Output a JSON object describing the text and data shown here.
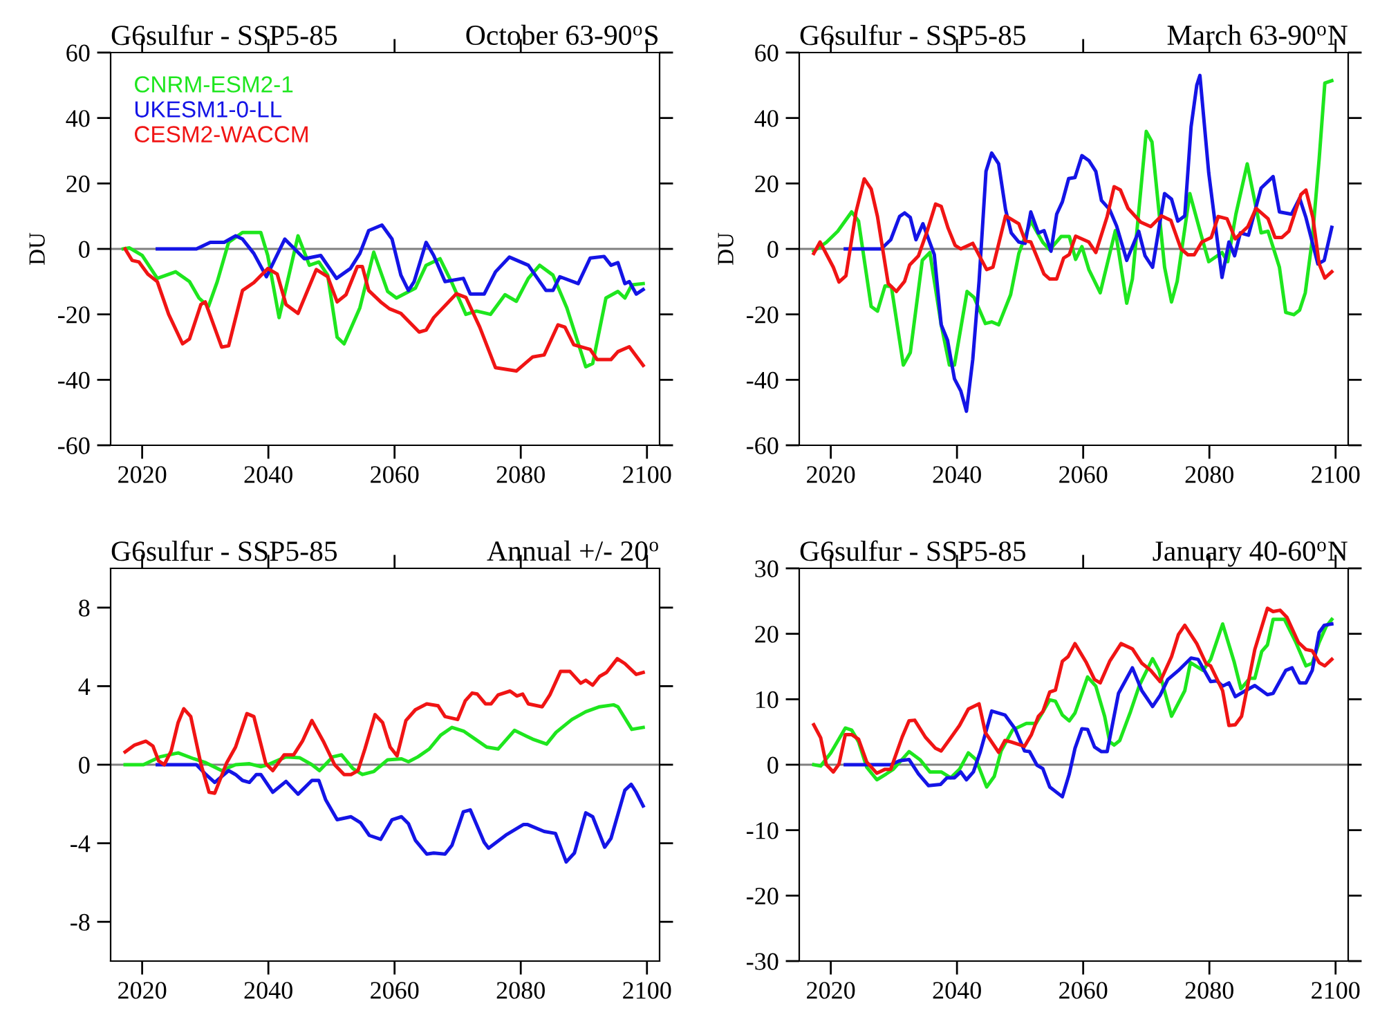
{
  "chart_data": [
    {
      "type": "line",
      "title": "G6sulfur - SSP5-85",
      "subtitle": "October 63-90$^{o}$S",
      "ylabel": "DU",
      "xlim": [
        2015,
        2102
      ],
      "xticks": [
        2020,
        2040,
        2060,
        2080,
        2100
      ],
      "ylim": [
        -60,
        60
      ],
      "yticks": [
        -60,
        -40,
        -20,
        0,
        20,
        40,
        60
      ],
      "legend": "top left",
      "ref_lines": [
        {
          "axis": "y",
          "value": 0,
          "color": "#808080"
        }
      ],
      "series": [
        {
          "name": "CNRM-ESM2-1",
          "color": "#1ee61e",
          "x": [
            2017,
            2018,
            2020,
            2022.4,
            2025.3,
            2027.5,
            2029,
            2030.5,
            2031.9,
            2033.7,
            2035.9,
            2038.8,
            2039.9,
            2041.7,
            2044.7,
            2046.5,
            2048,
            2049.4,
            2050.9,
            2052,
            2054.5,
            2056.7,
            2058.9,
            2060.3,
            2063.3,
            2065,
            2067.2,
            2069,
            2071.3,
            2073,
            2075.2,
            2077.5,
            2079.3,
            2081.2,
            2083,
            2085.1,
            2087.3,
            2090.3,
            2091.4,
            2093.5,
            2095.4,
            2096.5,
            2097.6,
            2099.4
          ],
          "values": [
            0,
            0.3,
            -2,
            -9,
            -7,
            -10,
            -15,
            -17.6,
            -10,
            2,
            5,
            5,
            -2,
            -21,
            4,
            -5,
            -4,
            -8,
            -27,
            -29,
            -18,
            -1,
            -13,
            -15,
            -12,
            -5,
            -3,
            -10,
            -20,
            -19,
            -20,
            -14,
            -16,
            -9,
            -5,
            -8,
            -18,
            -36,
            -35,
            -15,
            -13,
            -15,
            -11,
            -10.6
          ]
        },
        {
          "name": "UKESM1-0-LL",
          "color": "#1414e6",
          "x": [
            2022.4,
            2028.6,
            2030.8,
            2033,
            2034.8,
            2035.9,
            2037.7,
            2039.7,
            2042.6,
            2045.7,
            2048.3,
            2050.8,
            2053,
            2054.5,
            2055.9,
            2058,
            2059.6,
            2061,
            2062.2,
            2063.1,
            2065,
            2066.2,
            2068,
            2070.9,
            2072,
            2074.2,
            2076,
            2078.2,
            2081.2,
            2084,
            2085.1,
            2086.2,
            2089.1,
            2091,
            2093.2,
            2094.3,
            2095.4,
            2096.5,
            2097.2,
            2098.3,
            2099.4
          ],
          "values": [
            0,
            0,
            2,
            2,
            4,
            3,
            -1.4,
            -8.5,
            3,
            -3,
            -2,
            -9,
            -6,
            -1.4,
            5.6,
            7.3,
            3,
            -8,
            -12.7,
            -10,
            2,
            -2,
            -10,
            -9,
            -13.8,
            -13.8,
            -7,
            -2.5,
            -5,
            -12.7,
            -12.7,
            -8.5,
            -10.6,
            -2.8,
            -2.3,
            -5,
            -4.2,
            -10.6,
            -10,
            -13.8,
            -12.4
          ]
        },
        {
          "name": "CESM2-WACCM",
          "color": "#f01414",
          "x": [
            2017.3,
            2018.4,
            2019.5,
            2020.9,
            2022.4,
            2024.2,
            2026.4,
            2027.5,
            2029.3,
            2030,
            2032.6,
            2033.7,
            2035.9,
            2037.7,
            2039.9,
            2041.4,
            2042.8,
            2044.7,
            2047.6,
            2049.4,
            2050.9,
            2052.3,
            2054.1,
            2054.9,
            2055.9,
            2057.8,
            2059.2,
            2061,
            2063.9,
            2065,
            2066.2,
            2069.8,
            2071.3,
            2073.5,
            2076,
            2079.3,
            2081.9,
            2083.7,
            2085.9,
            2087,
            2088.4,
            2091,
            2092.1,
            2094.3,
            2095.4,
            2097.2,
            2099.4
          ],
          "values": [
            0,
            -3.5,
            -4,
            -7.7,
            -10,
            -20,
            -29,
            -27.5,
            -17,
            -16.2,
            -30,
            -29.6,
            -12.7,
            -10.3,
            -6,
            -7.7,
            -17,
            -19.7,
            -6.3,
            -8.5,
            -16.2,
            -14,
            -5.4,
            -5.4,
            -12.7,
            -16.2,
            -18.3,
            -19.7,
            -25.4,
            -24.8,
            -21,
            -13.7,
            -14.8,
            -23.9,
            -36.3,
            -37.3,
            -33,
            -32.4,
            -23.2,
            -23.9,
            -29.3,
            -30.7,
            -33.8,
            -33.8,
            -31.4,
            -29.9,
            -35.6
          ]
        }
      ]
    },
    {
      "type": "line",
      "title": "G6sulfur - SSP5-85",
      "subtitle": "March 63-90$^{o}$N",
      "ylabel": "DU",
      "xlim": [
        2015,
        2102
      ],
      "xticks": [
        2020,
        2040,
        2060,
        2080,
        2100
      ],
      "ylim": [
        -60,
        60
      ],
      "yticks": [
        -60,
        -40,
        -20,
        0,
        20,
        40,
        60
      ],
      "ref_lines": [
        {
          "axis": "y",
          "value": 0,
          "color": "#808080"
        }
      ],
      "series": [
        {
          "color": "#1ee61e",
          "x": [
            2017.3,
            2019.3,
            2021.1,
            2023.3,
            2024.4,
            2026.4,
            2027.4,
            2028.6,
            2029.6,
            2031.5,
            2032.6,
            2034.5,
            2035.7,
            2037.5,
            2038.8,
            2039.6,
            2041.6,
            2042.7,
            2044.5,
            2045.5,
            2046.6,
            2048.5,
            2049.8,
            2051.7,
            2053.6,
            2054.7,
            2056.5,
            2057.8,
            2058.8,
            2059.8,
            2060.9,
            2062.7,
            2065.1,
            2066.9,
            2067.8,
            2070,
            2070.9,
            2072.9,
            2074,
            2074.9,
            2076.9,
            2078.7,
            2079.9,
            2082,
            2082.9,
            2084.2,
            2086,
            2088.2,
            2089.3,
            2091.1,
            2092.1,
            2093.4,
            2094.3,
            2095.2,
            2096.3,
            2097.4,
            2098.3,
            2099.4
          ],
          "values": [
            -0.7,
            2,
            5.4,
            11.3,
            8.5,
            -17.6,
            -19,
            -11.3,
            -11.5,
            -35.5,
            -31.7,
            -3.5,
            -1.1,
            -23.2,
            -35.5,
            -35.5,
            -13,
            -14.8,
            -22.8,
            -22.3,
            -23.2,
            -14,
            -1.4,
            8.5,
            2,
            -0.3,
            3.8,
            3.8,
            -3.2,
            0.7,
            -6.3,
            -13.4,
            5.6,
            -16.6,
            -9.2,
            35.9,
            32.7,
            -5.6,
            -16.2,
            -9.9,
            16.9,
            4.2,
            -3.9,
            -1.1,
            -3.9,
            10.6,
            26,
            4.9,
            5.4,
            -5.6,
            -19.4,
            -20.1,
            -18.7,
            -13.4,
            2.8,
            27.5,
            50.7,
            51.4
          ]
        },
        {
          "color": "#1414e6",
          "x": [
            2022.3,
            2028,
            2029.5,
            2030.9,
            2031.7,
            2032.6,
            2033.5,
            2034.6,
            2036.4,
            2037.5,
            2038.5,
            2039.6,
            2040.6,
            2041.5,
            2042.5,
            2043.5,
            2044.6,
            2045.5,
            2046.6,
            2047.7,
            2048.6,
            2049.8,
            2050.8,
            2051.7,
            2052.9,
            2053.8,
            2054.9,
            2055.8,
            2056.7,
            2057.7,
            2058.7,
            2059.8,
            2060.9,
            2062,
            2062.9,
            2064.2,
            2065.3,
            2066.9,
            2068.8,
            2069.8,
            2071,
            2072.9,
            2074,
            2075,
            2076.1,
            2077.1,
            2078,
            2078.5,
            2079.9,
            2082,
            2083.1,
            2084,
            2084.9,
            2086.2,
            2088.2,
            2090.1,
            2091.1,
            2093,
            2094.3,
            2095.3,
            2097.2,
            2098.2,
            2099.4
          ],
          "values": [
            0,
            0,
            2.8,
            9.9,
            11,
            9.6,
            2.8,
            7.7,
            -1.7,
            -23.2,
            -27.9,
            -39.7,
            -43.4,
            -49.6,
            -33.8,
            -9.9,
            23.7,
            29.3,
            26,
            12,
            4.9,
            2.1,
            1.7,
            11.3,
            4.9,
            5.6,
            -0.7,
            10.6,
            14.4,
            21.5,
            21.8,
            28.5,
            27,
            23.7,
            14.8,
            12,
            7,
            -3.5,
            5.4,
            -2.1,
            -5.6,
            16.9,
            15.2,
            8.5,
            10.1,
            37.3,
            50,
            53,
            23.2,
            -8.7,
            2.1,
            -2.1,
            4.9,
            4.2,
            18.6,
            22.1,
            11.3,
            10.6,
            15.5,
            9.6,
            -4.6,
            -3.5,
            6.6
          ]
        },
        {
          "color": "#f01414",
          "x": [
            2017.3,
            2018.3,
            2020.4,
            2021.3,
            2022.4,
            2024,
            2025.3,
            2026.4,
            2027.4,
            2029.1,
            2030.4,
            2031.7,
            2032.5,
            2033.9,
            2035.3,
            2036.6,
            2037.5,
            2038.6,
            2039.7,
            2040.6,
            2042.5,
            2044.7,
            2045.7,
            2047.7,
            2049.8,
            2050.8,
            2051.7,
            2053.8,
            2054.7,
            2055.8,
            2056.9,
            2057.8,
            2058.8,
            2060.9,
            2062,
            2063.8,
            2064.9,
            2065.9,
            2067.1,
            2069.1,
            2070.7,
            2072.4,
            2073.9,
            2075.5,
            2076.6,
            2077.6,
            2078.8,
            2080.3,
            2081.4,
            2082.8,
            2084.1,
            2086.1,
            2087.4,
            2089.3,
            2090.4,
            2091.5,
            2092.6,
            2094.5,
            2095.3,
            2096.4,
            2097.4,
            2098.3,
            2099.4
          ],
          "values": [
            -1.4,
            2.1,
            -5.6,
            -10.1,
            -8.2,
            11.3,
            21.4,
            18.3,
            9.9,
            -10.6,
            -13,
            -9.9,
            -4.9,
            -2.1,
            5.6,
            13.7,
            13,
            6.3,
            1.1,
            0,
            1.7,
            -6.3,
            -5.6,
            10.1,
            7.7,
            2.5,
            2.1,
            -7.7,
            -9.2,
            -9.2,
            -2.8,
            -1.7,
            3.9,
            2.1,
            -1.1,
            9.9,
            19,
            18,
            12.4,
            8.2,
            6.8,
            10.1,
            8.7,
            0,
            -1.8,
            -1.8,
            2.1,
            3.5,
            9.9,
            9.2,
            3.1,
            6.8,
            12.4,
            9.2,
            3.5,
            3.5,
            5.4,
            16.6,
            18,
            9.6,
            -4.6,
            -8.9,
            -7
          ]
        }
      ]
    },
    {
      "type": "line",
      "title": "G6sulfur - SSP5-85",
      "subtitle": "Annual +/- 20$^{o}$",
      "xlim": [
        2015,
        2102
      ],
      "xticks": [
        2020,
        2040,
        2060,
        2080,
        2100
      ],
      "ylim": [
        -10,
        10
      ],
      "yticks": [
        -8,
        -4,
        0,
        4,
        8
      ],
      "ref_lines": [
        {
          "axis": "y",
          "value": 0,
          "color": "#808080"
        }
      ],
      "series": [
        {
          "color": "#1ee61e",
          "x": [
            2017.3,
            2020.2,
            2022.8,
            2025.7,
            2028.2,
            2030.1,
            2032.6,
            2034.8,
            2037,
            2038.8,
            2039.9,
            2042.8,
            2045,
            2046.9,
            2048.1,
            2050.2,
            2051.6,
            2053.4,
            2054.9,
            2056.7,
            2058.9,
            2061.1,
            2062.2,
            2063.7,
            2065.5,
            2067.3,
            2069.1,
            2071,
            2072.8,
            2074.6,
            2076.4,
            2079,
            2081.9,
            2084.1,
            2085.6,
            2088.1,
            2090.3,
            2092.5,
            2094.7,
            2095.4,
            2097.6,
            2099.4
          ],
          "values": [
            0,
            0,
            0.4,
            0.6,
            0.3,
            0.1,
            -0.3,
            0,
            0.05,
            -0.1,
            0,
            0.4,
            0.35,
            0,
            -0.3,
            0.4,
            0.5,
            -0.2,
            -0.5,
            -0.35,
            0.25,
            0.3,
            0.15,
            0.4,
            0.8,
            1.5,
            1.9,
            1.7,
            1.3,
            0.9,
            0.8,
            1.75,
            1.3,
            1.05,
            1.65,
            2.3,
            2.7,
            2.95,
            3.05,
            2.95,
            1.8,
            1.9
          ]
        },
        {
          "color": "#1414e6",
          "x": [
            2022.4,
            2028.6,
            2030.1,
            2031.5,
            2033.7,
            2034.8,
            2035.9,
            2037,
            2038.1,
            2038.8,
            2040.7,
            2042.8,
            2044.7,
            2046.9,
            2048,
            2049.1,
            2050.9,
            2053.1,
            2054.6,
            2056,
            2057.8,
            2059.6,
            2061.1,
            2062.2,
            2063.3,
            2065.1,
            2066.2,
            2068,
            2069.1,
            2070.9,
            2072,
            2074.2,
            2074.9,
            2077.8,
            2080.4,
            2081.1,
            2083.7,
            2085.5,
            2087.2,
            2088.5,
            2090.3,
            2091.4,
            2093.3,
            2094.3,
            2096.5,
            2097.5,
            2098.3,
            2099.4
          ],
          "values": [
            0,
            0,
            -0.5,
            -0.9,
            -0.3,
            -0.5,
            -0.8,
            -0.9,
            -0.5,
            -0.5,
            -1.4,
            -0.85,
            -1.5,
            -0.8,
            -0.8,
            -1.8,
            -2.8,
            -2.65,
            -2.95,
            -3.6,
            -3.8,
            -2.8,
            -2.65,
            -3,
            -3.85,
            -4.55,
            -4.5,
            -4.55,
            -4.1,
            -2.4,
            -2.3,
            -3.95,
            -4.25,
            -3.55,
            -3.05,
            -3.05,
            -3.4,
            -3.5,
            -4.95,
            -4.5,
            -2.45,
            -2.65,
            -4.2,
            -3.75,
            -1.3,
            -1,
            -1.4,
            -2.1
          ]
        },
        {
          "color": "#f01414",
          "x": [
            2017.3,
            2018.8,
            2020.6,
            2021.7,
            2022.6,
            2023.5,
            2024.6,
            2025.7,
            2026.6,
            2027.7,
            2029.3,
            2030.6,
            2031.5,
            2033.4,
            2034.8,
            2036.6,
            2037.7,
            2039.6,
            2040.7,
            2042.5,
            2044,
            2045.4,
            2046.9,
            2048.7,
            2050.5,
            2052,
            2053.1,
            2054.2,
            2055.3,
            2056.9,
            2058.1,
            2059.3,
            2060.4,
            2061.8,
            2063.3,
            2065.1,
            2066.9,
            2068,
            2070,
            2071.2,
            2072.3,
            2073.1,
            2074.4,
            2075.3,
            2076.4,
            2078.3,
            2079.4,
            2080.3,
            2081.2,
            2083.4,
            2084.6,
            2086.3,
            2087.8,
            2089.5,
            2090.3,
            2091.4,
            2092.5,
            2093.6,
            2095.3,
            2096.5,
            2098.3,
            2099.4
          ],
          "values": [
            0.65,
            1,
            1.2,
            0.95,
            0.2,
            0,
            0.7,
            2.15,
            2.85,
            2.45,
            0.05,
            -1.4,
            -1.45,
            0.1,
            0.9,
            2.6,
            2.45,
            0.05,
            -0.3,
            0.5,
            0.5,
            1.2,
            2.25,
            1.2,
            0,
            -0.5,
            -0.5,
            -0.3,
            0.8,
            2.55,
            2.15,
            0.9,
            0.45,
            2.25,
            2.8,
            3.1,
            3,
            2.45,
            2.3,
            3.25,
            3.65,
            3.6,
            3.1,
            3.1,
            3.55,
            3.75,
            3.5,
            3.6,
            3.1,
            2.95,
            3.55,
            4.75,
            4.75,
            4.15,
            4.3,
            4.05,
            4.5,
            4.7,
            5.4,
            5.15,
            4.6,
            4.7
          ]
        }
      ]
    },
    {
      "type": "line",
      "title": "G6sulfur - SSP5-85",
      "subtitle": "January 40-60$^{o}$N",
      "xlim": [
        2015,
        2102
      ],
      "xticks": [
        2020,
        2040,
        2060,
        2080,
        2100
      ],
      "ylim": [
        -30,
        30
      ],
      "yticks": [
        -30,
        -20,
        -10,
        0,
        10,
        20,
        30
      ],
      "ref_lines": [
        {
          "axis": "y",
          "value": 0,
          "color": "#808080"
        }
      ],
      "series": [
        {
          "color": "#1ee61e",
          "x": [
            2017.3,
            2018.4,
            2020,
            2022.3,
            2023.3,
            2024.4,
            2025.7,
            2027.3,
            2028.8,
            2029.9,
            2032.4,
            2034.2,
            2035.7,
            2037.5,
            2039,
            2040.4,
            2041.8,
            2043,
            2044.7,
            2045.9,
            2047,
            2048.8,
            2051,
            2052.5,
            2053.2,
            2054.7,
            2055.6,
            2056.7,
            2057.8,
            2058.7,
            2060.7,
            2062,
            2063.4,
            2064.2,
            2064.9,
            2065.8,
            2067.5,
            2068.9,
            2071,
            2072,
            2074,
            2076.1,
            2077,
            2079,
            2080.2,
            2082.1,
            2083.9,
            2085,
            2086.4,
            2087.2,
            2088.3,
            2089.2,
            2090.1,
            2091.9,
            2093.7,
            2095.3,
            2096.3,
            2097.4,
            2098.5,
            2099.4
          ],
          "values": [
            0,
            -0.2,
            1.8,
            5.6,
            5.3,
            3.5,
            -0.4,
            -2.3,
            -1.4,
            -0.7,
            2,
            0.7,
            -1.1,
            -1.1,
            -2,
            -0.7,
            1.8,
            0.8,
            -3.4,
            -1.8,
            2.1,
            5.3,
            6.3,
            6.3,
            7.4,
            9.9,
            9.7,
            7.6,
            6.7,
            7.9,
            13.4,
            12,
            7.4,
            3.5,
            3,
            3.7,
            8.1,
            12.1,
            16.2,
            14.4,
            7.4,
            11.3,
            15.6,
            14.4,
            16.1,
            21.5,
            15.8,
            11.6,
            13.2,
            13.2,
            17.3,
            18.3,
            22.2,
            22.2,
            18.7,
            15.1,
            15.5,
            18.7,
            21.1,
            22.2
          ]
        },
        {
          "color": "#1414e6",
          "x": [
            2022.3,
            2029.5,
            2030.9,
            2032.4,
            2033.9,
            2035.5,
            2037.4,
            2038.4,
            2039.6,
            2040.6,
            2041.5,
            2042.6,
            2043.7,
            2045.5,
            2047.6,
            2049.2,
            2050.7,
            2051.5,
            2052.7,
            2053.6,
            2054.7,
            2056.7,
            2057.8,
            2058.7,
            2059.8,
            2060.7,
            2061.8,
            2062.9,
            2063.8,
            2065.6,
            2067.8,
            2069.3,
            2071,
            2072.2,
            2073.4,
            2075.1,
            2077.1,
            2078.2,
            2080.2,
            2081.2,
            2082.1,
            2083.1,
            2084.1,
            2085.7,
            2087.2,
            2089.2,
            2090.1,
            2092.1,
            2093.1,
            2094.3,
            2095.3,
            2096.3,
            2097.4,
            2098.2,
            2099.4
          ],
          "values": [
            0,
            0,
            0.6,
            0.8,
            -1.4,
            -3.2,
            -3,
            -2,
            -2,
            -1.1,
            -2.3,
            -1.1,
            2,
            8.2,
            7.6,
            5.5,
            2.1,
            2,
            -0.1,
            -0.6,
            -3.4,
            -4.9,
            -1.4,
            2.5,
            5.5,
            5.4,
            2.7,
            2,
            2,
            10.9,
            14.8,
            11.3,
            8.9,
            10.6,
            13,
            14.4,
            16.3,
            16.1,
            12.7,
            12.8,
            12,
            12.5,
            10.4,
            11.3,
            12.1,
            10.7,
            10.9,
            14.4,
            14.8,
            12.5,
            12.5,
            14.4,
            20.2,
            21.3,
            21.5
          ]
        },
        {
          "color": "#f01414",
          "x": [
            2017.3,
            2018.4,
            2019.3,
            2020.4,
            2021.3,
            2022.3,
            2023.3,
            2024.4,
            2025.7,
            2027.3,
            2028.6,
            2029.5,
            2031.3,
            2032.4,
            2033.3,
            2035,
            2036.6,
            2037.5,
            2039,
            2040.4,
            2041.8,
            2043.5,
            2044.5,
            2046.6,
            2047.6,
            2048.5,
            2050.7,
            2051.8,
            2052.9,
            2053.6,
            2054.7,
            2055.6,
            2056.7,
            2057.6,
            2058.7,
            2060.5,
            2061.8,
            2062.7,
            2064.2,
            2066,
            2067.8,
            2069.3,
            2070.7,
            2072.2,
            2074,
            2075.1,
            2076.1,
            2078,
            2079.5,
            2080.2,
            2082.1,
            2083.1,
            2084.1,
            2085.1,
            2087.2,
            2089.2,
            2090.1,
            2091.2,
            2092.3,
            2094.1,
            2095.3,
            2096.3,
            2097.4,
            2098.3,
            2099.4
          ],
          "values": [
            6.1,
            4.1,
            0,
            -1.1,
            0.1,
            4.6,
            4.6,
            3.9,
            0.4,
            -1.3,
            -0.7,
            -0.7,
            4.2,
            6.7,
            6.8,
            4.2,
            2.5,
            2.1,
            4.1,
            6,
            8.5,
            9.3,
            4.9,
            1.9,
            3.7,
            3.5,
            2.8,
            4.6,
            7.4,
            8.1,
            11.1,
            11.4,
            15.8,
            16.5,
            18.5,
            15.6,
            13,
            12.5,
            15.8,
            18.5,
            17.7,
            15.5,
            14.4,
            12.7,
            16.5,
            19.9,
            21.3,
            18.5,
            15.4,
            15.1,
            11.3,
            6,
            6.1,
            7.4,
            17.6,
            23.9,
            23.4,
            23.6,
            22.5,
            18.7,
            17.6,
            17.4,
            15.6,
            15.1,
            16.1
          ]
        }
      ]
    }
  ]
}
